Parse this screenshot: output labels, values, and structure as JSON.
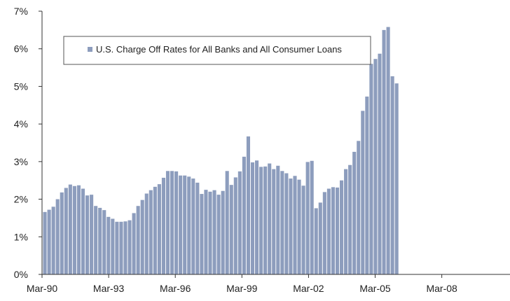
{
  "chart_data": {
    "type": "bar",
    "title": "",
    "xlabel": "",
    "ylabel": "",
    "ylim": [
      0,
      7
    ],
    "y_ticks": [
      "0%",
      "1%",
      "2%",
      "3%",
      "4%",
      "5%",
      "6%",
      "7%"
    ],
    "x_tick_labels": [
      "Mar-90",
      "Mar-93",
      "Mar-96",
      "Mar-99",
      "Mar-02",
      "Mar-05",
      "Mar-08"
    ],
    "legend_placement": "top-left",
    "grid": false,
    "bar_color": "#8d9dbd",
    "x_frequency": "quarterly",
    "series": [
      {
        "name": "U.S. Charge Off Rates for All Banks and All Consumer Loans",
        "values": [
          1.66,
          1.72,
          1.8,
          2.0,
          2.18,
          2.3,
          2.39,
          2.35,
          2.37,
          2.28,
          2.1,
          2.12,
          1.82,
          1.77,
          1.71,
          1.53,
          1.48,
          1.4,
          1.4,
          1.41,
          1.44,
          1.63,
          1.82,
          1.98,
          2.15,
          2.24,
          2.33,
          2.4,
          2.57,
          2.75,
          2.75,
          2.74,
          2.63,
          2.63,
          2.6,
          2.55,
          2.44,
          2.14,
          2.25,
          2.2,
          2.24,
          2.12,
          2.22,
          2.75,
          2.38,
          2.58,
          2.74,
          3.13,
          3.67,
          2.98,
          3.03,
          2.86,
          2.87,
          2.95,
          2.8,
          2.89,
          2.75,
          2.69,
          2.55,
          2.62,
          2.52,
          2.36,
          2.99,
          3.02,
          1.76,
          1.91,
          2.19,
          2.28,
          2.32,
          2.31,
          2.5,
          2.8,
          2.91,
          3.26,
          3.55,
          4.35,
          4.73,
          5.6,
          5.73,
          5.87,
          6.5,
          6.58,
          5.27,
          5.08
        ]
      }
    ]
  }
}
